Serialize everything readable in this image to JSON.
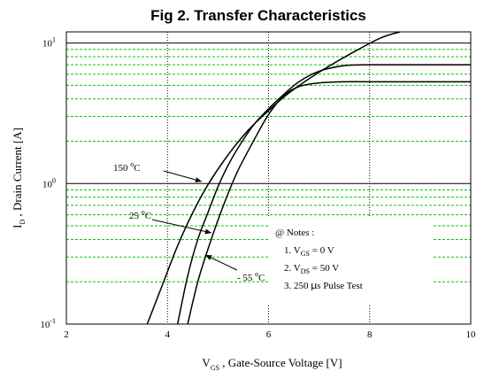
{
  "chart_data": {
    "type": "line",
    "title": "Fig 2.  Transfer Characteristics",
    "xlabel": {
      "main": "V",
      "sub": "GS",
      "rest": " , Gate-Source Voltage   [V]"
    },
    "ylabel": {
      "main": "I",
      "sub": "D",
      "rest": " ,  Drain Current   [A]"
    },
    "x_scale": "linear",
    "y_scale": "log",
    "xlim": [
      2,
      10
    ],
    "ylim": [
      0.1,
      12
    ],
    "x_ticks": [
      {
        "value": 2,
        "label": "2"
      },
      {
        "value": 4,
        "label": "4"
      },
      {
        "value": 6,
        "label": "6"
      },
      {
        "value": 8,
        "label": "8"
      },
      {
        "value": 10,
        "label": "10"
      }
    ],
    "y_ticks": [
      {
        "value": 0.1,
        "base": "10",
        "exp": "-1"
      },
      {
        "value": 1,
        "base": "10",
        "exp": "0"
      },
      {
        "value": 10,
        "base": "10",
        "exp": "1"
      }
    ],
    "grid": {
      "major_x": [
        4,
        6,
        8
      ],
      "major_y": [
        1,
        10
      ],
      "minor_y": [
        0.2,
        0.3,
        0.4,
        0.5,
        0.6,
        0.7,
        0.8,
        0.9,
        2,
        3,
        4,
        5,
        6,
        7,
        8,
        9
      ]
    },
    "series": [
      {
        "name": "150 °C",
        "label": {
          "pre": "150 ",
          "sup": "o",
          "post": "C"
        },
        "x": [
          3.6,
          3.9,
          4.2,
          4.5,
          4.8,
          5.2,
          5.6,
          6.0,
          6.4,
          7.0,
          7.6,
          8.2,
          8.6
        ],
        "y": [
          0.1,
          0.19,
          0.36,
          0.62,
          0.98,
          1.6,
          2.4,
          3.3,
          4.4,
          6.2,
          8.3,
          10.8,
          12
        ]
      },
      {
        "name": "25 °C",
        "label": {
          "pre": "25 ",
          "sup": "o",
          "post": "C"
        },
        "x": [
          4.2,
          4.4,
          4.6,
          4.8,
          5.0,
          5.2,
          5.4,
          5.7,
          6.0,
          6.3,
          6.6,
          7.0,
          7.5,
          8.0,
          9.0,
          10.0
        ],
        "y": [
          0.1,
          0.22,
          0.4,
          0.62,
          0.95,
          1.35,
          1.8,
          2.6,
          3.4,
          4.3,
          5.3,
          6.3,
          6.9,
          7.0,
          7.0,
          7.0
        ]
      },
      {
        "name": "- 55 °C",
        "label": {
          "pre": "- 55 ",
          "sup": "o",
          "post": "C"
        },
        "x": [
          4.4,
          4.6,
          4.8,
          5.0,
          5.2,
          5.4,
          5.7,
          6.0,
          6.3,
          6.6,
          7.0,
          7.5,
          8.0,
          9.0,
          10.0
        ],
        "y": [
          0.1,
          0.2,
          0.34,
          0.55,
          0.85,
          1.25,
          2.0,
          3.1,
          4.2,
          4.9,
          5.2,
          5.3,
          5.3,
          5.3,
          5.3
        ]
      }
    ],
    "notes": {
      "header": "@ Notes :",
      "items": [
        {
          "pre": "1. V",
          "sub": "GS",
          "post": " = 0 V"
        },
        {
          "pre": "2. V",
          "sub": "DS",
          "post": " = 50 V"
        },
        {
          "pre": "3. 250 ",
          "mu": "μ",
          "post": "s Pulse Test"
        }
      ]
    },
    "colors": {
      "curve": "#000000",
      "axis": "#000000",
      "major_grid": "#000000",
      "minor_grid": "#00cc00",
      "background": "#ffffff"
    }
  }
}
